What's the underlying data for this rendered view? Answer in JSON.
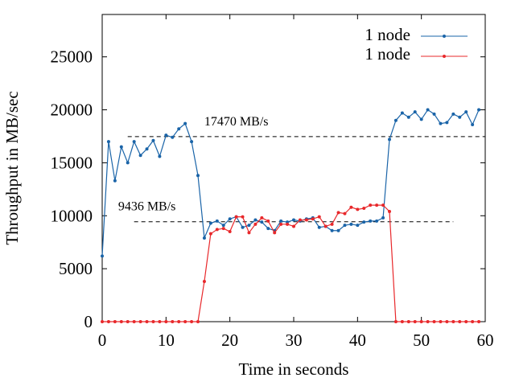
{
  "chart_data": {
    "type": "line",
    "title": "",
    "xlabel": "Time in seconds",
    "ylabel": "Throughput in MB/sec",
    "xlim": [
      0,
      60
    ],
    "ylim": [
      0,
      29000
    ],
    "xticks": [
      0,
      10,
      20,
      30,
      40,
      50,
      60
    ],
    "yticks": [
      0,
      5000,
      10000,
      15000,
      20000,
      25000
    ],
    "grid": false,
    "legend_position": "top-right",
    "series": [
      {
        "name": "1 node",
        "color": "#1a64a8",
        "x": [
          0,
          1,
          2,
          3,
          4,
          5,
          6,
          7,
          8,
          9,
          10,
          11,
          12,
          13,
          14,
          15,
          16,
          17,
          18,
          19,
          20,
          21,
          22,
          23,
          24,
          25,
          26,
          27,
          28,
          29,
          30,
          31,
          32,
          33,
          34,
          35,
          36,
          37,
          38,
          39,
          40,
          41,
          42,
          43,
          44,
          45,
          46,
          47,
          48,
          49,
          50,
          51,
          52,
          53,
          54,
          55,
          56,
          57,
          58,
          59
        ],
        "values": [
          6200,
          17000,
          13300,
          16500,
          15000,
          17000,
          15700,
          16300,
          17100,
          15600,
          17600,
          17400,
          18200,
          18700,
          17000,
          13800,
          7900,
          9300,
          9500,
          9100,
          9700,
          9900,
          8900,
          9100,
          9600,
          9400,
          8800,
          8600,
          9500,
          9400,
          9600,
          9500,
          9700,
          9800,
          8900,
          9000,
          8600,
          8600,
          9100,
          9200,
          9100,
          9400,
          9500,
          9500,
          9800,
          17200,
          19000,
          19700,
          19300,
          19800,
          19100,
          20000,
          19600,
          18700,
          18800,
          19600,
          19300,
          19800,
          18600,
          20000
        ]
      },
      {
        "name": "1 node",
        "color": "#e8282b",
        "x": [
          0,
          1,
          2,
          3,
          4,
          5,
          6,
          7,
          8,
          9,
          10,
          11,
          12,
          13,
          14,
          15,
          16,
          17,
          18,
          19,
          20,
          21,
          22,
          23,
          24,
          25,
          26,
          27,
          28,
          29,
          30,
          31,
          32,
          33,
          34,
          35,
          36,
          37,
          38,
          39,
          40,
          41,
          42,
          43,
          44,
          45,
          46,
          47,
          48,
          49,
          50,
          51,
          52,
          53,
          54,
          55,
          56,
          57,
          58,
          59
        ],
        "values": [
          0,
          0,
          0,
          0,
          0,
          0,
          0,
          0,
          0,
          0,
          0,
          0,
          0,
          0,
          0,
          0,
          3800,
          8300,
          8700,
          8800,
          8500,
          9900,
          9900,
          8400,
          9200,
          9800,
          9500,
          8400,
          9200,
          9200,
          9000,
          9600,
          9600,
          9700,
          9900,
          9000,
          9200,
          10300,
          10200,
          10800,
          10600,
          10700,
          11000,
          11000,
          11000,
          10400,
          0,
          0,
          0,
          0,
          0,
          0,
          0,
          0,
          0,
          0,
          0,
          0,
          0,
          0
        ]
      }
    ],
    "annotations": [
      {
        "text": "17470 MB/s",
        "value": 17470,
        "x_range": [
          4,
          60
        ],
        "label_x": 16
      },
      {
        "text": "9436 MB/s",
        "value": 9436,
        "x_range": [
          5,
          55
        ],
        "label_x": 2.5
      }
    ]
  }
}
